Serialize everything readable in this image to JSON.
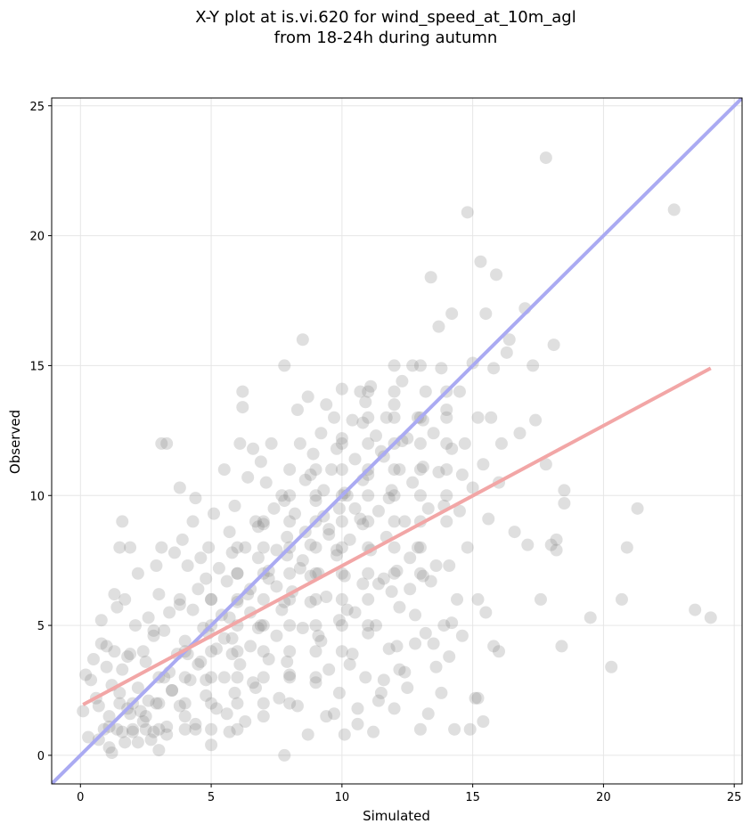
{
  "chart_data": {
    "type": "scatter",
    "title_line1": "X-Y plot at is.vi.620 for wind_speed_at_10m_agl",
    "title_line2": "from 18-24h during autumn",
    "xlabel": "Simulated",
    "ylabel": "Observed",
    "xlim": [
      -1.1,
      25.3
    ],
    "ylim": [
      -1.1,
      25.3
    ],
    "xticks": [
      "0",
      "5",
      "10",
      "15",
      "20",
      "25"
    ],
    "yticks": [
      "0",
      "5",
      "10",
      "15",
      "20",
      "25"
    ],
    "grid": true,
    "colors": {
      "points": "#7f7f7f",
      "identity_line": "#aaaaf2",
      "regression_line": "#f2a6a6"
    },
    "identity_line": {
      "x": [
        -1.1,
        25.3
      ],
      "y": [
        -1.1,
        25.3
      ]
    },
    "regression_line": {
      "x": [
        0.1,
        24.1
      ],
      "y": [
        1.95,
        14.9
      ]
    },
    "points": [
      [
        0.1,
        1.7
      ],
      [
        0.2,
        3.1
      ],
      [
        0.3,
        0.7
      ],
      [
        0.4,
        2.9
      ],
      [
        0.5,
        3.7
      ],
      [
        0.6,
        2.2
      ],
      [
        0.7,
        1.9
      ],
      [
        0.8,
        4.3
      ],
      [
        0.8,
        5.2
      ],
      [
        0.9,
        1.0
      ],
      [
        1.0,
        3.4
      ],
      [
        1.0,
        4.2
      ],
      [
        1.1,
        0.3
      ],
      [
        1.1,
        1.5
      ],
      [
        1.2,
        0.1
      ],
      [
        1.2,
        2.7
      ],
      [
        1.3,
        4.0
      ],
      [
        1.3,
        6.2
      ],
      [
        1.4,
        1.0
      ],
      [
        1.4,
        5.7
      ],
      [
        1.5,
        8.0
      ],
      [
        1.5,
        2.4
      ],
      [
        1.6,
        3.3
      ],
      [
        1.6,
        9.0
      ],
      [
        1.7,
        6.0
      ],
      [
        1.7,
        0.5
      ],
      [
        1.8,
        1.8
      ],
      [
        1.9,
        8.0
      ],
      [
        1.9,
        3.9
      ],
      [
        2.0,
        0.9
      ],
      [
        2.1,
        5.0
      ],
      [
        2.2,
        2.6
      ],
      [
        2.2,
        7.0
      ],
      [
        2.3,
        1.7
      ],
      [
        2.4,
        4.0
      ],
      [
        2.5,
        1.0
      ],
      [
        2.5,
        3.6
      ],
      [
        2.6,
        5.3
      ],
      [
        2.7,
        0.6
      ],
      [
        2.8,
        4.6
      ],
      [
        2.9,
        7.3
      ],
      [
        2.9,
        2.0
      ],
      [
        3.0,
        6.2
      ],
      [
        3.0,
        0.2
      ],
      [
        3.1,
        12.0
      ],
      [
        3.1,
        8.0
      ],
      [
        3.2,
        3.0
      ],
      [
        3.2,
        4.8
      ],
      [
        3.3,
        12.0
      ],
      [
        3.3,
        1.1
      ],
      [
        3.4,
        5.5
      ],
      [
        3.5,
        2.5
      ],
      [
        3.6,
        7.8
      ],
      [
        3.7,
        3.9
      ],
      [
        3.8,
        10.3
      ],
      [
        3.8,
        6.0
      ],
      [
        3.9,
        8.3
      ],
      [
        4.0,
        1.5
      ],
      [
        4.0,
        4.4
      ],
      [
        4.1,
        7.3
      ],
      [
        4.2,
        2.9
      ],
      [
        4.3,
        9.0
      ],
      [
        4.3,
        5.6
      ],
      [
        4.4,
        9.9
      ],
      [
        4.4,
        1.0
      ],
      [
        4.5,
        6.4
      ],
      [
        4.6,
        3.6
      ],
      [
        4.6,
        7.6
      ],
      [
        4.7,
        4.9
      ],
      [
        4.8,
        2.3
      ],
      [
        4.9,
        8.0
      ],
      [
        5.0,
        0.4
      ],
      [
        5.0,
        6.0
      ],
      [
        5.1,
        9.3
      ],
      [
        5.2,
        4.1
      ],
      [
        5.2,
        1.8
      ],
      [
        5.3,
        7.2
      ],
      [
        5.4,
        5.4
      ],
      [
        5.5,
        3.0
      ],
      [
        5.5,
        11.0
      ],
      [
        5.6,
        6.7
      ],
      [
        5.7,
        0.9
      ],
      [
        5.7,
        8.6
      ],
      [
        5.8,
        4.5
      ],
      [
        5.9,
        2.4
      ],
      [
        5.9,
        9.6
      ],
      [
        6.0,
        7.0
      ],
      [
        6.0,
        5.9
      ],
      [
        6.1,
        12.0
      ],
      [
        6.1,
        3.5
      ],
      [
        6.2,
        14.0
      ],
      [
        6.2,
        13.4
      ],
      [
        6.3,
        1.3
      ],
      [
        6.3,
        8.0
      ],
      [
        6.4,
        10.7
      ],
      [
        6.5,
        6.4
      ],
      [
        6.5,
        4.2
      ],
      [
        6.6,
        11.8
      ],
      [
        6.6,
        2.8
      ],
      [
        6.7,
        9.0
      ],
      [
        6.8,
        7.6
      ],
      [
        6.9,
        11.3
      ],
      [
        6.9,
        5.0
      ],
      [
        7.0,
        1.5
      ],
      [
        7.0,
        8.9
      ],
      [
        7.1,
        10.5
      ],
      [
        7.2,
        3.7
      ],
      [
        7.2,
        6.8
      ],
      [
        7.3,
        12.0
      ],
      [
        7.4,
        9.5
      ],
      [
        7.5,
        4.6
      ],
      [
        7.5,
        7.9
      ],
      [
        7.6,
        2.2
      ],
      [
        7.7,
        10.0
      ],
      [
        7.7,
        5.6
      ],
      [
        7.8,
        0.0
      ],
      [
        7.8,
        15.0
      ],
      [
        7.9,
        8.4
      ],
      [
        8.0,
        11.0
      ],
      [
        8.0,
        3.1
      ],
      [
        8.1,
        6.3
      ],
      [
        8.2,
        9.3
      ],
      [
        8.3,
        13.3
      ],
      [
        8.3,
        1.9
      ],
      [
        8.4,
        12.0
      ],
      [
        8.4,
        7.2
      ],
      [
        8.5,
        16.0
      ],
      [
        8.5,
        4.9
      ],
      [
        8.6,
        10.6
      ],
      [
        8.7,
        13.8
      ],
      [
        8.7,
        0.8
      ],
      [
        8.8,
        8.1
      ],
      [
        8.8,
        5.9
      ],
      [
        8.9,
        11.6
      ],
      [
        9.0,
        2.8
      ],
      [
        9.0,
        9.8
      ],
      [
        9.1,
        7.0
      ],
      [
        9.2,
        12.4
      ],
      [
        9.2,
        4.4
      ],
      [
        9.3,
        10.2
      ],
      [
        9.4,
        13.5
      ],
      [
        9.4,
        6.1
      ],
      [
        9.5,
        3.3
      ],
      [
        9.5,
        8.7
      ],
      [
        9.6,
        11.0
      ],
      [
        9.7,
        1.6
      ],
      [
        9.7,
        13.0
      ],
      [
        9.8,
        7.7
      ],
      [
        9.9,
        5.2
      ],
      [
        9.9,
        9.5
      ],
      [
        10.0,
        14.1
      ],
      [
        10.0,
        12.2
      ],
      [
        10.1,
        0.8
      ],
      [
        10.1,
        6.9
      ],
      [
        10.2,
        10.0
      ],
      [
        10.3,
        3.5
      ],
      [
        10.3,
        8.3
      ],
      [
        10.4,
        12.9
      ],
      [
        10.5,
        5.5
      ],
      [
        10.5,
        11.4
      ],
      [
        10.6,
        1.8
      ],
      [
        10.7,
        14.0
      ],
      [
        10.7,
        9.1
      ],
      [
        10.8,
        6.6
      ],
      [
        10.9,
        13.6
      ],
      [
        10.9,
        3.0
      ],
      [
        11.0,
        10.8
      ],
      [
        11.1,
        7.9
      ],
      [
        11.1,
        14.2
      ],
      [
        11.2,
        0.9
      ],
      [
        11.3,
        12.3
      ],
      [
        11.3,
        5.0
      ],
      [
        11.4,
        9.4
      ],
      [
        11.5,
        2.4
      ],
      [
        11.5,
        11.7
      ],
      [
        11.6,
        6.8
      ],
      [
        11.7,
        13.0
      ],
      [
        11.7,
        8.4
      ],
      [
        11.8,
        4.1
      ],
      [
        11.9,
        10.2
      ],
      [
        12.0,
        1.8
      ],
      [
        12.0,
        13.5
      ],
      [
        12.1,
        7.1
      ],
      [
        12.2,
        11.0
      ],
      [
        12.2,
        5.7
      ],
      [
        12.3,
        14.4
      ],
      [
        12.4,
        9.0
      ],
      [
        12.4,
        3.2
      ],
      [
        12.5,
        12.2
      ],
      [
        12.6,
        6.4
      ],
      [
        12.7,
        15.0
      ],
      [
        12.7,
        10.5
      ],
      [
        12.8,
        4.3
      ],
      [
        12.9,
        8.0
      ],
      [
        12.9,
        13.0
      ],
      [
        13.0,
        1.0
      ],
      [
        13.1,
        11.1
      ],
      [
        13.1,
        6.9
      ],
      [
        13.2,
        14.0
      ],
      [
        13.3,
        9.5
      ],
      [
        13.3,
        1.6
      ],
      [
        13.4,
        18.4
      ],
      [
        13.5,
        4.3
      ],
      [
        13.5,
        12.4
      ],
      [
        13.6,
        7.3
      ],
      [
        13.7,
        16.5
      ],
      [
        13.7,
        10.9
      ],
      [
        13.8,
        2.4
      ],
      [
        13.8,
        14.9
      ],
      [
        13.9,
        5.0
      ],
      [
        14.0,
        9.0
      ],
      [
        14.0,
        13.3
      ],
      [
        14.1,
        3.8
      ],
      [
        14.2,
        17.0
      ],
      [
        14.2,
        11.8
      ],
      [
        14.3,
        1.0
      ],
      [
        14.4,
        6.0
      ],
      [
        14.5,
        9.4
      ],
      [
        14.5,
        14.0
      ],
      [
        14.6,
        4.6
      ],
      [
        14.7,
        12.0
      ],
      [
        14.8,
        20.9
      ],
      [
        14.8,
        8.0
      ],
      [
        14.9,
        1.0
      ],
      [
        15.0,
        15.1
      ],
      [
        15.0,
        10.3
      ],
      [
        15.1,
        2.2
      ],
      [
        15.2,
        13.0
      ],
      [
        15.2,
        6.0
      ],
      [
        15.3,
        19.0
      ],
      [
        15.4,
        11.2
      ],
      [
        15.4,
        1.3
      ],
      [
        15.5,
        17.0
      ],
      [
        15.5,
        5.5
      ],
      [
        15.6,
        9.1
      ],
      [
        15.7,
        13.0
      ],
      [
        15.8,
        14.9
      ],
      [
        15.8,
        4.2
      ],
      [
        15.9,
        18.5
      ],
      [
        16.0,
        10.5
      ],
      [
        16.0,
        4.0
      ],
      [
        16.1,
        12.0
      ],
      [
        16.3,
        15.5
      ],
      [
        16.4,
        16.0
      ],
      [
        16.6,
        8.6
      ],
      [
        16.8,
        12.4
      ],
      [
        17.0,
        17.2
      ],
      [
        17.1,
        8.1
      ],
      [
        17.3,
        15.0
      ],
      [
        17.4,
        12.9
      ],
      [
        17.6,
        6.0
      ],
      [
        17.8,
        23.0
      ],
      [
        17.8,
        11.2
      ],
      [
        18.0,
        8.1
      ],
      [
        18.1,
        15.8
      ],
      [
        18.2,
        7.9
      ],
      [
        18.2,
        8.3
      ],
      [
        18.4,
        4.2
      ],
      [
        18.5,
        10.2
      ],
      [
        18.5,
        9.7
      ],
      [
        19.5,
        5.3
      ],
      [
        20.3,
        3.4
      ],
      [
        20.7,
        6.0
      ],
      [
        20.9,
        8.0
      ],
      [
        21.3,
        9.5
      ],
      [
        22.7,
        21.0
      ],
      [
        23.5,
        5.6
      ],
      [
        24.1,
        5.3
      ],
      [
        2.0,
        1.0
      ],
      [
        3.0,
        1.0
      ],
      [
        4.0,
        1.0
      ],
      [
        5.0,
        1.0
      ],
      [
        6.0,
        1.0
      ],
      [
        2.0,
        2.0
      ],
      [
        3.0,
        2.0
      ],
      [
        4.0,
        2.0
      ],
      [
        5.0,
        2.0
      ],
      [
        6.0,
        2.0
      ],
      [
        7.0,
        2.0
      ],
      [
        8.0,
        2.0
      ],
      [
        3.0,
        3.0
      ],
      [
        4.0,
        3.0
      ],
      [
        5.0,
        3.0
      ],
      [
        6.0,
        3.0
      ],
      [
        7.0,
        3.0
      ],
      [
        8.0,
        3.0
      ],
      [
        9.0,
        3.0
      ],
      [
        4.0,
        4.0
      ],
      [
        5.0,
        4.0
      ],
      [
        6.0,
        4.0
      ],
      [
        7.0,
        4.0
      ],
      [
        8.0,
        4.0
      ],
      [
        9.0,
        4.0
      ],
      [
        10.0,
        4.0
      ],
      [
        5.0,
        5.0
      ],
      [
        6.0,
        5.0
      ],
      [
        7.0,
        5.0
      ],
      [
        8.0,
        5.0
      ],
      [
        9.0,
        5.0
      ],
      [
        10.0,
        5.0
      ],
      [
        11.0,
        5.0
      ],
      [
        5.0,
        6.0
      ],
      [
        6.0,
        6.0
      ],
      [
        7.0,
        6.0
      ],
      [
        8.0,
        6.0
      ],
      [
        9.0,
        6.0
      ],
      [
        10.0,
        6.0
      ],
      [
        11.0,
        6.0
      ],
      [
        6.0,
        7.0
      ],
      [
        7.0,
        7.0
      ],
      [
        8.0,
        7.0
      ],
      [
        9.0,
        7.0
      ],
      [
        10.0,
        7.0
      ],
      [
        11.0,
        7.0
      ],
      [
        12.0,
        7.0
      ],
      [
        13.0,
        7.0
      ],
      [
        6.0,
        8.0
      ],
      [
        7.0,
        8.0
      ],
      [
        8.0,
        8.0
      ],
      [
        9.0,
        8.0
      ],
      [
        10.0,
        8.0
      ],
      [
        11.0,
        8.0
      ],
      [
        12.0,
        8.0
      ],
      [
        13.0,
        8.0
      ],
      [
        7.0,
        9.0
      ],
      [
        8.0,
        9.0
      ],
      [
        9.0,
        9.0
      ],
      [
        10.0,
        9.0
      ],
      [
        11.0,
        9.0
      ],
      [
        12.0,
        9.0
      ],
      [
        13.0,
        9.0
      ],
      [
        8.0,
        10.0
      ],
      [
        9.0,
        10.0
      ],
      [
        10.0,
        10.0
      ],
      [
        11.0,
        10.0
      ],
      [
        12.0,
        10.0
      ],
      [
        13.0,
        10.0
      ],
      [
        14.0,
        10.0
      ],
      [
        9.0,
        11.0
      ],
      [
        10.0,
        11.0
      ],
      [
        11.0,
        11.0
      ],
      [
        12.0,
        11.0
      ],
      [
        13.0,
        11.0
      ],
      [
        14.0,
        11.0
      ],
      [
        10.0,
        12.0
      ],
      [
        11.0,
        12.0
      ],
      [
        12.0,
        12.0
      ],
      [
        13.0,
        12.0
      ],
      [
        14.0,
        12.0
      ],
      [
        11.0,
        13.0
      ],
      [
        12.0,
        13.0
      ],
      [
        13.0,
        13.0
      ],
      [
        14.0,
        13.0
      ],
      [
        11.0,
        14.0
      ],
      [
        12.0,
        14.0
      ],
      [
        14.0,
        14.0
      ],
      [
        12.0,
        15.0
      ],
      [
        13.0,
        15.0
      ],
      [
        1.5,
        2.0
      ],
      [
        2.5,
        1.5
      ],
      [
        3.5,
        2.5
      ],
      [
        4.5,
        3.5
      ],
      [
        5.5,
        4.5
      ],
      [
        6.5,
        5.5
      ],
      [
        7.5,
        6.5
      ],
      [
        8.5,
        7.5
      ],
      [
        9.5,
        8.5
      ],
      [
        10.5,
        9.5
      ],
      [
        2.8,
        0.9
      ],
      [
        3.8,
        1.9
      ],
      [
        4.8,
        2.9
      ],
      [
        5.8,
        3.9
      ],
      [
        6.8,
        4.9
      ],
      [
        7.8,
        5.9
      ],
      [
        8.8,
        6.9
      ],
      [
        9.8,
        7.9
      ],
      [
        10.8,
        8.9
      ],
      [
        11.8,
        9.9
      ],
      [
        1.8,
        3.8
      ],
      [
        2.8,
        4.8
      ],
      [
        3.8,
        5.8
      ],
      [
        4.8,
        6.8
      ],
      [
        5.8,
        7.8
      ],
      [
        6.8,
        8.8
      ],
      [
        7.8,
        9.8
      ],
      [
        8.8,
        10.8
      ],
      [
        9.8,
        11.8
      ],
      [
        10.8,
        12.8
      ],
      [
        2.2,
        0.5
      ],
      [
        3.3,
        0.8
      ],
      [
        4.4,
        1.2
      ],
      [
        5.6,
        1.6
      ],
      [
        6.7,
        2.6
      ],
      [
        7.9,
        3.6
      ],
      [
        9.1,
        4.6
      ],
      [
        10.2,
        5.6
      ],
      [
        11.4,
        6.6
      ],
      [
        12.6,
        7.6
      ],
      [
        1.1,
        1.1
      ],
      [
        1.9,
        1.6
      ],
      [
        2.6,
        2.1
      ],
      [
        3.4,
        3.2
      ],
      [
        4.1,
        3.9
      ],
      [
        4.9,
        4.7
      ],
      [
        5.7,
        5.3
      ],
      [
        6.4,
        6.2
      ],
      [
        7.2,
        7.1
      ],
      [
        7.9,
        7.7
      ],
      [
        8.6,
        8.6
      ],
      [
        9.3,
        9.2
      ],
      [
        10.1,
        10.1
      ],
      [
        10.8,
        10.6
      ],
      [
        11.6,
        11.5
      ],
      [
        12.3,
        12.1
      ],
      [
        13.1,
        12.9
      ],
      [
        0.7,
        0.6
      ],
      [
        1.6,
        0.9
      ],
      [
        2.4,
        1.3
      ],
      [
        12.5,
        2.6
      ],
      [
        13.6,
        3.4
      ],
      [
        14.2,
        5.1
      ],
      [
        15.2,
        2.2
      ],
      [
        11.4,
        2.1
      ],
      [
        10.6,
        1.2
      ],
      [
        9.4,
        1.5
      ],
      [
        12.1,
        4.2
      ],
      [
        13.9,
        9.6
      ],
      [
        14.6,
        10.8
      ],
      [
        11.9,
        6.3
      ],
      [
        12.8,
        5.4
      ],
      [
        13.4,
        6.7
      ],
      [
        14.1,
        7.3
      ],
      [
        9.9,
        2.4
      ],
      [
        10.4,
        3.9
      ],
      [
        11.0,
        4.7
      ],
      [
        11.6,
        2.9
      ],
      [
        12.2,
        3.3
      ],
      [
        13.2,
        4.7
      ]
    ]
  }
}
